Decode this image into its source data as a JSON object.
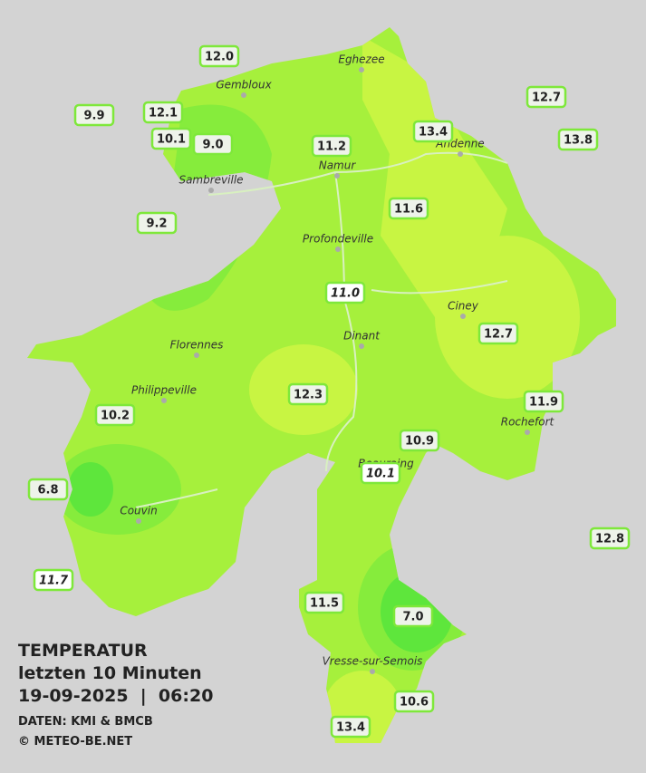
{
  "header": {
    "title": "TEMPERATUR",
    "subtitle": "letzten 10 Minuten",
    "datetime": "19-09-2025  |  06:20",
    "source": "DATEN: KMI & BMCB",
    "copyright": "© METEO-BE.NET"
  },
  "towns": [
    "Eghezee",
    "Gembloux",
    "Andenne",
    "Namur",
    "Sambreville",
    "Profondeville",
    "Ciney",
    "Dinant",
    "Florennes",
    "Philippeville",
    "Rochefort",
    "Beauraing",
    "Couvin",
    "Vresse-sur-Semois"
  ],
  "stations": [
    {
      "value": "12.0"
    },
    {
      "value": "9.9"
    },
    {
      "value": "12.1"
    },
    {
      "value": "10.1"
    },
    {
      "value": "9.0"
    },
    {
      "value": "11.2"
    },
    {
      "value": "13.4"
    },
    {
      "value": "12.7"
    },
    {
      "value": "13.8"
    },
    {
      "value": "11.6"
    },
    {
      "value": "9.2"
    },
    {
      "value": "11.0",
      "italic": true
    },
    {
      "value": "12.7"
    },
    {
      "value": "12.3"
    },
    {
      "value": "11.9"
    },
    {
      "value": "10.2"
    },
    {
      "value": "10.9"
    },
    {
      "value": "10.1",
      "italic": true
    },
    {
      "value": "6.8"
    },
    {
      "value": "12.8"
    },
    {
      "value": "11.7",
      "italic": true
    },
    {
      "value": "11.5"
    },
    {
      "value": "7.0"
    },
    {
      "value": "10.6"
    },
    {
      "value": "13.4"
    }
  ]
}
